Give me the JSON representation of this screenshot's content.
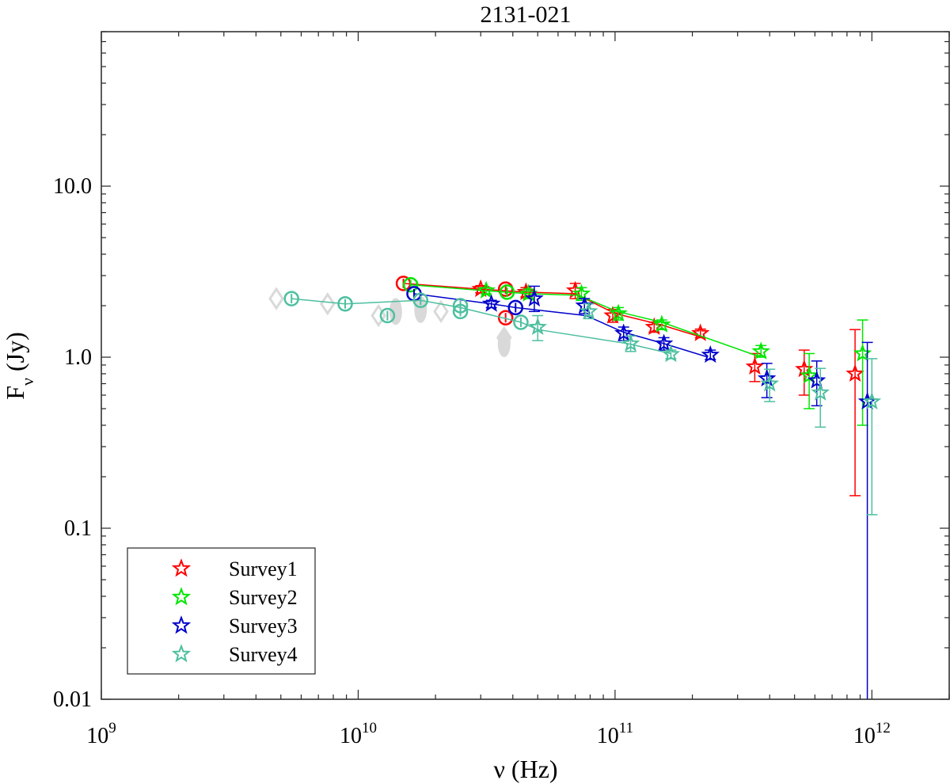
{
  "chart_data": {
    "type": "scatter",
    "title": "2131-021",
    "xlabel": "ν (Hz)",
    "ylabel_main": "F",
    "ylabel_sub": "ν",
    "ylabel_unit": " (Jy)",
    "xscale": "log",
    "yscale": "log",
    "xlim": [
      1000000000.0,
      2000000000000.0
    ],
    "ylim": [
      0.01,
      80
    ],
    "x_ticks": [
      {
        "value": 1000000000.0,
        "base": "10",
        "exp": "9"
      },
      {
        "value": 10000000000.0,
        "base": "10",
        "exp": "10"
      },
      {
        "value": 100000000000.0,
        "base": "10",
        "exp": "11"
      },
      {
        "value": 1000000000000.0,
        "base": "10",
        "exp": "12"
      }
    ],
    "y_ticks": [
      {
        "value": 0.01,
        "label": "0.01"
      },
      {
        "value": 0.1,
        "label": "0.1"
      },
      {
        "value": 1,
        "label": "1.0"
      },
      {
        "value": 10,
        "label": "10.0"
      }
    ],
    "grid": false,
    "legend_position": "bottom-left",
    "background_points": {
      "color": "#d9d9d9",
      "diamonds": [
        {
          "x": 4800000000.0,
          "y": 2.2
        },
        {
          "x": 7600000000.0,
          "y": 2.05
        },
        {
          "x": 12000000000.0,
          "y": 1.75
        },
        {
          "x": 21000000000.0,
          "y": 1.85
        },
        {
          "x": 37000000000.0,
          "y": 1.3
        }
      ],
      "blobs": [
        {
          "x": 14000000000.0,
          "y": 1.85
        },
        {
          "x": 17500000000.0,
          "y": 1.9
        },
        {
          "x": 37000000000.0,
          "y": 1.2
        }
      ]
    },
    "series": [
      {
        "name": "Survey1",
        "color": "#ff0000",
        "line": [
          [
            15000000000.0,
            2.7
          ],
          [
            30000000000.0,
            2.5
          ],
          [
            45000000000.0,
            2.4
          ],
          [
            70000000000.0,
            2.35
          ],
          [
            100000000000.0,
            1.8
          ],
          [
            150000000000.0,
            1.55
          ],
          [
            220000000000.0,
            1.3
          ]
        ],
        "circles": [
          [
            15000000000.0,
            2.7
          ],
          [
            37500000000.0,
            2.5
          ],
          [
            37500000000.0,
            1.7
          ]
        ],
        "stars": [
          {
            "x": 30000000000.0,
            "y": 2.5,
            "lo": 2.38,
            "hi": 2.62
          },
          {
            "x": 45000000000.0,
            "y": 2.4,
            "lo": 2.25,
            "hi": 2.55
          },
          {
            "x": 70000000000.0,
            "y": 2.45,
            "lo": 2.2,
            "hi": 2.7
          },
          {
            "x": 98000000000.0,
            "y": 1.75,
            "lo": 1.6,
            "hi": 1.9
          },
          {
            "x": 142000000000.0,
            "y": 1.5,
            "lo": 1.4,
            "hi": 1.6
          },
          {
            "x": 215000000000.0,
            "y": 1.38,
            "lo": 1.3,
            "hi": 1.46
          },
          {
            "x": 350000000000.0,
            "y": 0.88,
            "lo": 0.72,
            "hi": 1.05
          },
          {
            "x": 545000000000.0,
            "y": 0.85,
            "lo": 0.6,
            "hi": 1.1
          },
          {
            "x": 860000000000.0,
            "y": 0.8,
            "lo": 0.155,
            "hi": 1.45
          }
        ]
      },
      {
        "name": "Survey2",
        "color": "#00e600",
        "line": [
          [
            16000000000.0,
            2.65
          ],
          [
            31000000000.0,
            2.45
          ],
          [
            46000000000.0,
            2.35
          ],
          [
            72000000000.0,
            2.3
          ],
          [
            102000000000.0,
            1.85
          ],
          [
            152000000000.0,
            1.6
          ],
          [
            370000000000.0,
            1.0
          ]
        ],
        "circles": [
          [
            16000000000.0,
            2.65
          ],
          [
            38000000000.0,
            2.4
          ]
        ],
        "stars": [
          {
            "x": 31500000000.0,
            "y": 2.45,
            "lo": 2.35,
            "hi": 2.55
          },
          {
            "x": 46000000000.0,
            "y": 2.35,
            "lo": 2.2,
            "hi": 2.5
          },
          {
            "x": 74000000000.0,
            "y": 2.35,
            "lo": 2.15,
            "hi": 2.55
          },
          {
            "x": 103000000000.0,
            "y": 1.8,
            "lo": 1.65,
            "hi": 1.95
          },
          {
            "x": 152000000000.0,
            "y": 1.55,
            "lo": 1.45,
            "hi": 1.65
          },
          {
            "x": 370000000000.0,
            "y": 1.08,
            "lo": 1.0,
            "hi": 1.17
          },
          {
            "x": 570000000000.0,
            "y": 0.78,
            "lo": 0.5,
            "hi": 1.05
          },
          {
            "x": 920000000000.0,
            "y": 1.05,
            "lo": 0.4,
            "hi": 1.65
          }
        ]
      },
      {
        "name": "Survey3",
        "color": "#0000cc",
        "line": [
          [
            16500000000.0,
            2.35
          ],
          [
            33000000000.0,
            2.05
          ],
          [
            41000000000.0,
            1.95
          ],
          [
            77000000000.0,
            1.75
          ],
          [
            108000000000.0,
            1.4
          ],
          [
            155000000000.0,
            1.2
          ],
          [
            230000000000.0,
            1.0
          ]
        ],
        "circles": [
          [
            16500000000.0,
            2.35
          ],
          [
            41000000000.0,
            1.95
          ]
        ],
        "stars": [
          {
            "x": 33000000000.0,
            "y": 2.05,
            "lo": 1.95,
            "hi": 2.15
          },
          {
            "x": 48500000000.0,
            "y": 2.2,
            "lo": 1.85,
            "hi": 2.6
          },
          {
            "x": 76000000000.0,
            "y": 2.0,
            "lo": 1.8,
            "hi": 2.2
          },
          {
            "x": 108000000000.0,
            "y": 1.38,
            "lo": 1.25,
            "hi": 1.5
          },
          {
            "x": 155000000000.0,
            "y": 1.2,
            "lo": 1.1,
            "hi": 1.3
          },
          {
            "x": 235000000000.0,
            "y": 1.03,
            "lo": 0.97,
            "hi": 1.1
          },
          {
            "x": 390000000000.0,
            "y": 0.75,
            "lo": 0.58,
            "hi": 0.92
          },
          {
            "x": 610000000000.0,
            "y": 0.73,
            "lo": 0.52,
            "hi": 0.95
          },
          {
            "x": 960000000000.0,
            "y": 0.55,
            "lo": 0.008,
            "hi": 1.22
          }
        ]
      },
      {
        "name": "Survey4",
        "color": "#4dbf9f",
        "line": [
          [
            5500000000.0,
            2.2
          ],
          [
            8900000000.0,
            2.05
          ],
          [
            17500000000.0,
            2.15
          ],
          [
            25000000000.0,
            1.95
          ],
          [
            43000000000.0,
            1.6
          ],
          [
            50000000000.0,
            1.45
          ],
          [
            112000000000.0,
            1.2
          ],
          [
            165000000000.0,
            1.05
          ]
        ],
        "circles": [
          [
            5500000000.0,
            2.2
          ],
          [
            8900000000.0,
            2.05
          ],
          [
            13000000000.0,
            1.75
          ],
          [
            17500000000.0,
            2.15
          ],
          [
            25000000000.0,
            2.0
          ],
          [
            25000000000.0,
            1.85
          ],
          [
            43000000000.0,
            1.6
          ]
        ],
        "stars": [
          {
            "x": 50000000000.0,
            "y": 1.5,
            "lo": 1.25,
            "hi": 1.75
          },
          {
            "x": 79000000000.0,
            "y": 1.85,
            "lo": 1.68,
            "hi": 2.05
          },
          {
            "x": 115000000000.0,
            "y": 1.2,
            "lo": 1.08,
            "hi": 1.33
          },
          {
            "x": 165000000000.0,
            "y": 1.04,
            "lo": 0.98,
            "hi": 1.1
          },
          {
            "x": 400000000000.0,
            "y": 0.7,
            "lo": 0.55,
            "hi": 0.85
          },
          {
            "x": 630000000000.0,
            "y": 0.62,
            "lo": 0.39,
            "hi": 0.86
          },
          {
            "x": 1000000000000.0,
            "y": 0.55,
            "lo": 0.12,
            "hi": 0.98
          }
        ]
      }
    ]
  }
}
